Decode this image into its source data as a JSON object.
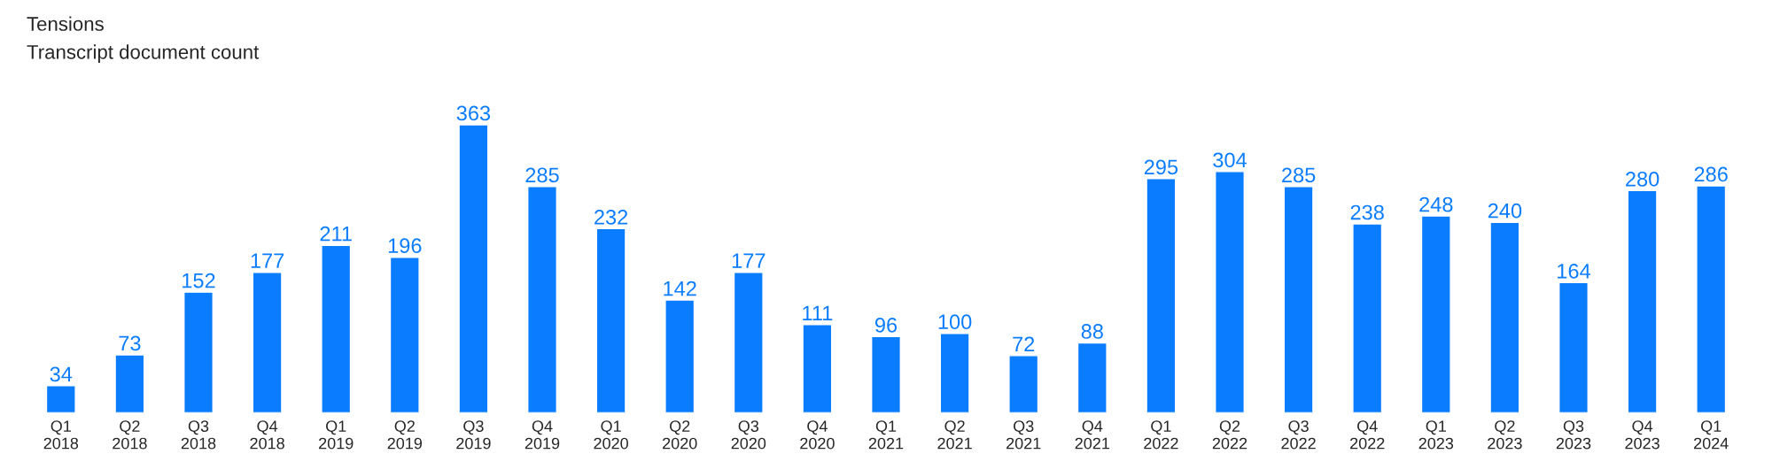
{
  "chart_data": {
    "type": "bar",
    "title": "Tensions",
    "subtitle": "Transcript document count",
    "categories": [
      "Q1\n2018",
      "Q2\n2018",
      "Q3\n2018",
      "Q4\n2018",
      "Q1\n2019",
      "Q2\n2019",
      "Q3\n2019",
      "Q4\n2019",
      "Q1\n2020",
      "Q2\n2020",
      "Q3\n2020",
      "Q4\n2020",
      "Q1\n2021",
      "Q2\n2021",
      "Q3\n2021",
      "Q4\n2021",
      "Q1\n2022",
      "Q2\n2022",
      "Q3\n2022",
      "Q4\n2022",
      "Q1\n2023",
      "Q2\n2023",
      "Q3\n2023",
      "Q4\n2023",
      "Q1\n2024"
    ],
    "values": [
      34,
      73,
      152,
      177,
      211,
      196,
      363,
      285,
      232,
      142,
      177,
      111,
      96,
      100,
      72,
      88,
      295,
      304,
      285,
      238,
      248,
      240,
      164,
      280,
      286
    ],
    "color": "#0a7cff",
    "data_labels": true,
    "tick_labels": "x",
    "grid": false,
    "legend": false
  }
}
